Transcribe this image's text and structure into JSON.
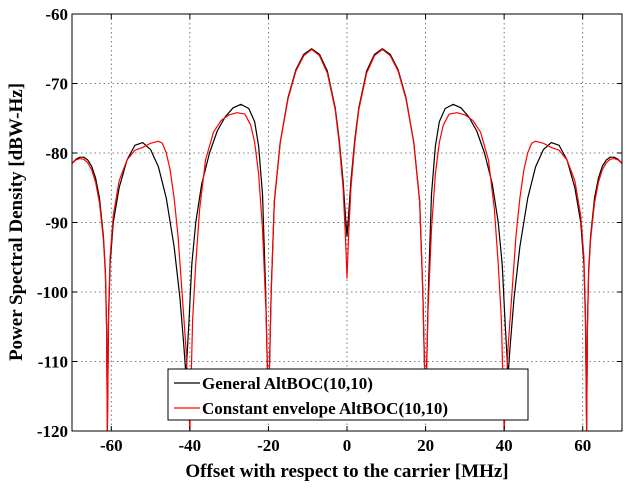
{
  "chart_data": {
    "type": "line",
    "title": "",
    "xlabel": "Offset with respect to the carrier [MHz]",
    "ylabel": "Power Spectral Density [dBW-Hz]",
    "xlim": [
      -70,
      70
    ],
    "ylim": [
      -120,
      -60
    ],
    "xticks": [
      -60,
      -40,
      -20,
      0,
      20,
      40,
      60
    ],
    "yticks": [
      -60,
      -70,
      -80,
      -90,
      -100,
      -110,
      -120
    ],
    "grid": true,
    "legend_position": "bottom-center",
    "series": [
      {
        "name": "General AltBOC(10,10)",
        "color": "#000000",
        "points": [
          [
            -70,
            -81.5
          ],
          [
            -69,
            -80.9
          ],
          [
            -68,
            -80.6
          ],
          [
            -67,
            -80.6
          ],
          [
            -66,
            -81.0
          ],
          [
            -65,
            -81.9
          ],
          [
            -64,
            -83.6
          ],
          [
            -63,
            -86.5
          ],
          [
            -62,
            -92.0
          ],
          [
            -61.5,
            -97.0
          ],
          [
            -61.2,
            -105.0
          ],
          [
            -61.0,
            -120.0
          ],
          [
            -60.7,
            -104.0
          ],
          [
            -60.3,
            -96.0
          ],
          [
            -59.5,
            -90.0
          ],
          [
            -58,
            -85.0
          ],
          [
            -56,
            -81.0
          ],
          [
            -54,
            -78.9
          ],
          [
            -52,
            -78.5
          ],
          [
            -50,
            -79.5
          ],
          [
            -48,
            -82.0
          ],
          [
            -46,
            -86.5
          ],
          [
            -44,
            -93.5
          ],
          [
            -42.5,
            -101.0
          ],
          [
            -41.5,
            -108.0
          ],
          [
            -41.0,
            -112.0
          ],
          [
            -40.3,
            -105.0
          ],
          [
            -39.5,
            -96.0
          ],
          [
            -38.5,
            -90.0
          ],
          [
            -37,
            -84.5
          ],
          [
            -35,
            -80.0
          ],
          [
            -33,
            -76.8
          ],
          [
            -31,
            -74.8
          ],
          [
            -29,
            -73.5
          ],
          [
            -27,
            -73.0
          ],
          [
            -25,
            -73.6
          ],
          [
            -23.5,
            -75.5
          ],
          [
            -22.5,
            -79.0
          ],
          [
            -21.5,
            -86.0
          ],
          [
            -20.7,
            -100.0
          ],
          [
            -20.3,
            -110.0
          ],
          [
            -20.0,
            -116.0
          ],
          [
            -19.7,
            -110.0
          ],
          [
            -19.3,
            -100.0
          ],
          [
            -18.5,
            -87.0
          ],
          [
            -17,
            -78.5
          ],
          [
            -15,
            -72.0
          ],
          [
            -13,
            -68.0
          ],
          [
            -11,
            -65.8
          ],
          [
            -9,
            -65.0
          ],
          [
            -7,
            -65.8
          ],
          [
            -5,
            -68.2
          ],
          [
            -3,
            -73.5
          ],
          [
            -2,
            -78.0
          ],
          [
            -1,
            -84.0
          ],
          [
            -0.4,
            -89.0
          ],
          [
            0,
            -92.0
          ],
          [
            0.4,
            -89.0
          ],
          [
            1,
            -84.0
          ],
          [
            2,
            -78.0
          ],
          [
            3,
            -73.5
          ],
          [
            5,
            -68.2
          ],
          [
            7,
            -65.8
          ],
          [
            9,
            -65.0
          ],
          [
            11,
            -65.8
          ],
          [
            13,
            -68.0
          ],
          [
            15,
            -72.0
          ],
          [
            17,
            -78.5
          ],
          [
            18.5,
            -87.0
          ],
          [
            19.3,
            -100.0
          ],
          [
            19.7,
            -110.0
          ],
          [
            20.0,
            -116.0
          ],
          [
            20.3,
            -110.0
          ],
          [
            20.7,
            -100.0
          ],
          [
            21.5,
            -86.0
          ],
          [
            22.5,
            -79.0
          ],
          [
            23.5,
            -75.5
          ],
          [
            25,
            -73.6
          ],
          [
            27,
            -73.0
          ],
          [
            29,
            -73.5
          ],
          [
            31,
            -74.8
          ],
          [
            33,
            -76.8
          ],
          [
            35,
            -80.0
          ],
          [
            37,
            -84.5
          ],
          [
            38.5,
            -90.0
          ],
          [
            39.5,
            -96.0
          ],
          [
            40.3,
            -105.0
          ],
          [
            41.0,
            -112.0
          ],
          [
            41.5,
            -108.0
          ],
          [
            42.5,
            -101.0
          ],
          [
            44,
            -93.5
          ],
          [
            46,
            -86.5
          ],
          [
            48,
            -82.0
          ],
          [
            50,
            -79.5
          ],
          [
            52,
            -78.5
          ],
          [
            54,
            -78.9
          ],
          [
            56,
            -81.0
          ],
          [
            58,
            -85.0
          ],
          [
            59.5,
            -90.0
          ],
          [
            60.3,
            -96.0
          ],
          [
            60.7,
            -104.0
          ],
          [
            61.0,
            -120.0
          ],
          [
            61.2,
            -105.0
          ],
          [
            61.5,
            -97.0
          ],
          [
            62,
            -92.0
          ],
          [
            63,
            -86.5
          ],
          [
            64,
            -83.6
          ],
          [
            65,
            -81.9
          ],
          [
            66,
            -81.0
          ],
          [
            67,
            -80.6
          ],
          [
            68,
            -80.6
          ],
          [
            69,
            -80.9
          ],
          [
            70,
            -81.5
          ]
        ]
      },
      {
        "name": "Constant envelope AltBOC(10,10)",
        "color": "#ff0000",
        "points": [
          [
            -70,
            -81.5
          ],
          [
            -69,
            -81.0
          ],
          [
            -68,
            -80.8
          ],
          [
            -67,
            -80.9
          ],
          [
            -66,
            -81.4
          ],
          [
            -65,
            -82.4
          ],
          [
            -64,
            -84.2
          ],
          [
            -63,
            -87.2
          ],
          [
            -62,
            -92.5
          ],
          [
            -61.5,
            -97.5
          ],
          [
            -61.2,
            -105.0
          ],
          [
            -61.0,
            -120.0
          ],
          [
            -60.7,
            -103.0
          ],
          [
            -60.3,
            -95.0
          ],
          [
            -59.5,
            -89.0
          ],
          [
            -58,
            -84.0
          ],
          [
            -56,
            -81.0
          ],
          [
            -54,
            -79.6
          ],
          [
            -52,
            -79.2
          ],
          [
            -50,
            -78.6
          ],
          [
            -48,
            -78.3
          ],
          [
            -47,
            -78.6
          ],
          [
            -46,
            -80.0
          ],
          [
            -45,
            -82.5
          ],
          [
            -44,
            -86.5
          ],
          [
            -43,
            -92.0
          ],
          [
            -42,
            -100.0
          ],
          [
            -41,
            -108.0
          ],
          [
            -40.0,
            -120.0
          ],
          [
            -39.3,
            -104.0
          ],
          [
            -38.5,
            -96.0
          ],
          [
            -37.5,
            -88.0
          ],
          [
            -36,
            -81.0
          ],
          [
            -34,
            -77.0
          ],
          [
            -32,
            -75.3
          ],
          [
            -30,
            -74.5
          ],
          [
            -28,
            -74.2
          ],
          [
            -26,
            -74.4
          ],
          [
            -24.5,
            -76.0
          ],
          [
            -23.5,
            -78.5
          ],
          [
            -22.5,
            -83.0
          ],
          [
            -21.5,
            -91.0
          ],
          [
            -20.6,
            -103.0
          ],
          [
            -20.2,
            -113.0
          ],
          [
            -20.0,
            -117.0
          ],
          [
            -19.7,
            -110.0
          ],
          [
            -19.3,
            -100.0
          ],
          [
            -18.5,
            -87.0
          ],
          [
            -17,
            -78.5
          ],
          [
            -15,
            -72.2
          ],
          [
            -13,
            -68.2
          ],
          [
            -11,
            -66.0
          ],
          [
            -9,
            -65.1
          ],
          [
            -7,
            -66.0
          ],
          [
            -5,
            -68.5
          ],
          [
            -3,
            -73.8
          ],
          [
            -2,
            -78.5
          ],
          [
            -1,
            -85.0
          ],
          [
            -0.4,
            -92.0
          ],
          [
            0,
            -98.0
          ],
          [
            0.4,
            -92.0
          ],
          [
            1,
            -85.0
          ],
          [
            2,
            -78.5
          ],
          [
            3,
            -73.8
          ],
          [
            5,
            -68.5
          ],
          [
            7,
            -66.0
          ],
          [
            9,
            -65.1
          ],
          [
            11,
            -66.0
          ],
          [
            13,
            -68.2
          ],
          [
            15,
            -72.2
          ],
          [
            17,
            -78.5
          ],
          [
            18.5,
            -87.0
          ],
          [
            19.3,
            -100.0
          ],
          [
            19.7,
            -110.0
          ],
          [
            20.0,
            -117.0
          ],
          [
            20.2,
            -113.0
          ],
          [
            20.6,
            -103.0
          ],
          [
            21.5,
            -91.0
          ],
          [
            22.5,
            -83.0
          ],
          [
            23.5,
            -78.5
          ],
          [
            24.5,
            -76.0
          ],
          [
            26,
            -74.4
          ],
          [
            28,
            -74.2
          ],
          [
            30,
            -74.5
          ],
          [
            32,
            -75.3
          ],
          [
            34,
            -77.0
          ],
          [
            36,
            -81.0
          ],
          [
            37.5,
            -88.0
          ],
          [
            38.5,
            -96.0
          ],
          [
            39.3,
            -104.0
          ],
          [
            40.0,
            -120.0
          ],
          [
            41,
            -108.0
          ],
          [
            42,
            -100.0
          ],
          [
            43,
            -92.0
          ],
          [
            44,
            -86.5
          ],
          [
            45,
            -82.5
          ],
          [
            46,
            -80.0
          ],
          [
            47,
            -78.6
          ],
          [
            48,
            -78.3
          ],
          [
            50,
            -78.6
          ],
          [
            52,
            -79.2
          ],
          [
            54,
            -79.6
          ],
          [
            56,
            -81.0
          ],
          [
            58,
            -84.0
          ],
          [
            59.5,
            -89.0
          ],
          [
            60.3,
            -95.0
          ],
          [
            60.7,
            -103.0
          ],
          [
            61.0,
            -120.0
          ],
          [
            61.2,
            -105.0
          ],
          [
            61.5,
            -97.5
          ],
          [
            62,
            -92.5
          ],
          [
            63,
            -87.2
          ],
          [
            64,
            -84.2
          ],
          [
            65,
            -82.4
          ],
          [
            66,
            -81.4
          ],
          [
            67,
            -80.9
          ],
          [
            68,
            -80.8
          ],
          [
            69,
            -81.0
          ],
          [
            70,
            -81.5
          ]
        ]
      }
    ]
  }
}
